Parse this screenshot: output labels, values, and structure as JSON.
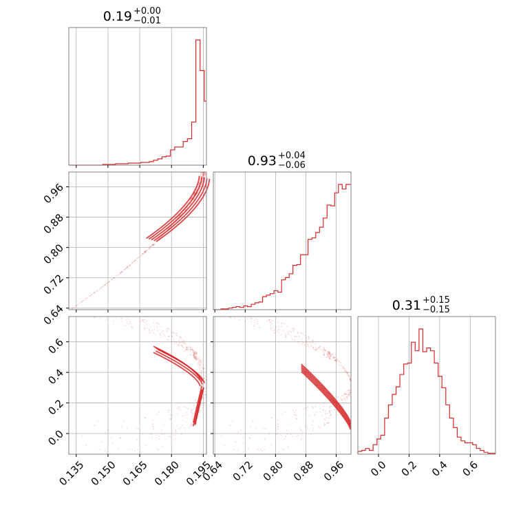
{
  "chart_data": {
    "type": "corner",
    "color": "#d62728",
    "parameters": [
      {
        "index": 0,
        "title": {
          "value": "0.19",
          "upper": "+0.00",
          "lower": "−0.01"
        },
        "range": [
          0.1315,
          0.1965
        ],
        "ticks": [
          0.135,
          0.15,
          0.165,
          0.18,
          0.195
        ],
        "tick_labels": [
          "0.135",
          "0.150",
          "0.165",
          "0.180",
          "0.195"
        ],
        "histogram": {
          "bin_edges": [
            0.1315,
            0.1335,
            0.1355,
            0.1375,
            0.1395,
            0.1415,
            0.1435,
            0.1455,
            0.1475,
            0.1495,
            0.1515,
            0.1535,
            0.1555,
            0.1575,
            0.1595,
            0.1615,
            0.1635,
            0.1655,
            0.1675,
            0.1695,
            0.1715,
            0.1735,
            0.1755,
            0.1775,
            0.1795,
            0.1815,
            0.1835,
            0.1855,
            0.1875,
            0.1895,
            0.1915,
            0.1935,
            0.1955,
            0.1965
          ],
          "counts": [
            0,
            0,
            0,
            0,
            0,
            0,
            0,
            0,
            0.5,
            0.5,
            0.5,
            1,
            1,
            1,
            1.5,
            1.5,
            1.5,
            2,
            2,
            2.5,
            3.5,
            4.5,
            6,
            6.5,
            11,
            13,
            13,
            17,
            19,
            31,
            90,
            68,
            46
          ]
        }
      },
      {
        "index": 1,
        "title": {
          "value": "0.93",
          "upper": "+0.04",
          "lower": "−0.06"
        },
        "range": [
          0.636,
          0.999
        ],
        "ticks": [
          0.64,
          0.72,
          0.8,
          0.88,
          0.96
        ],
        "tick_labels": [
          "0.64",
          "0.72",
          "0.80",
          "0.88",
          "0.96"
        ],
        "histogram": {
          "bin_edges": [
            0.636,
            0.646,
            0.656,
            0.666,
            0.676,
            0.686,
            0.696,
            0.706,
            0.716,
            0.726,
            0.736,
            0.746,
            0.756,
            0.766,
            0.776,
            0.786,
            0.796,
            0.806,
            0.816,
            0.826,
            0.836,
            0.846,
            0.856,
            0.866,
            0.876,
            0.886,
            0.896,
            0.906,
            0.916,
            0.926,
            0.936,
            0.946,
            0.956,
            0.966,
            0.976,
            0.986,
            0.999
          ],
          "counts": [
            0,
            0,
            1,
            1,
            2,
            3,
            4,
            3,
            5,
            4,
            7,
            9,
            10,
            17,
            19,
            21,
            25,
            23,
            39,
            42,
            47,
            58,
            59,
            72,
            72,
            92,
            94,
            101,
            108,
            120,
            137,
            136,
            153,
            164,
            158,
            164
          ]
        }
      },
      {
        "index": 2,
        "title": {
          "value": "0.31",
          "upper": "+0.15",
          "lower": "−0.15"
        },
        "range": [
          -0.135,
          0.765
        ],
        "ticks": [
          0.0,
          0.2,
          0.4,
          0.6
        ],
        "tick_labels": [
          "0.0",
          "0.2",
          "0.4",
          "0.6"
        ],
        "histogram": {
          "bin_edges": [
            -0.135,
            -0.11,
            -0.085,
            -0.06,
            -0.035,
            -0.01,
            0.015,
            0.04,
            0.065,
            0.09,
            0.115,
            0.14,
            0.165,
            0.19,
            0.215,
            0.24,
            0.265,
            0.29,
            0.315,
            0.34,
            0.365,
            0.39,
            0.415,
            0.44,
            0.465,
            0.49,
            0.515,
            0.54,
            0.565,
            0.59,
            0.615,
            0.64,
            0.665,
            0.69,
            0.715,
            0.74,
            0.765
          ],
          "counts": [
            3,
            4,
            6,
            4,
            10,
            16,
            20,
            38,
            52,
            63,
            71,
            84,
            95,
            96,
            118,
            109,
            132,
            108,
            112,
            109,
            96,
            82,
            70,
            52,
            38,
            28,
            18,
            14,
            12,
            12,
            10,
            6,
            4,
            2,
            1,
            1
          ]
        }
      }
    ]
  }
}
